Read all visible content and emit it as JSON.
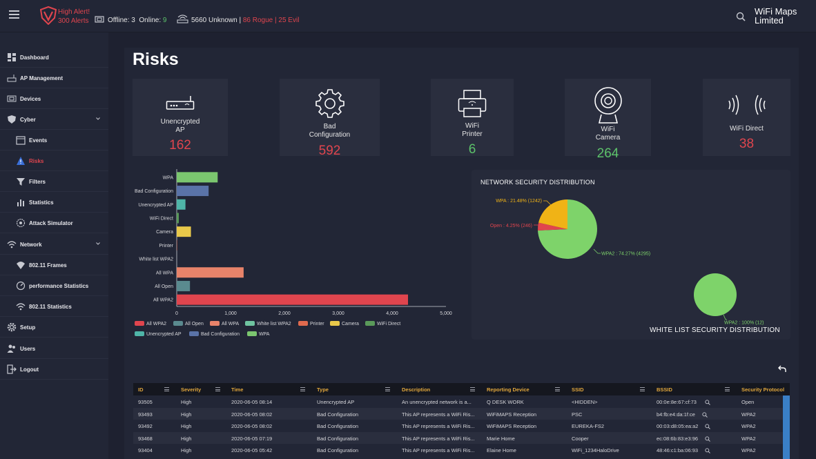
{
  "header": {
    "alert_title": "High Alert!",
    "alert_count": "300 Alerts",
    "offline_label": "Offline:",
    "offline_value": "3",
    "online_label": "Online:",
    "online_value": "9",
    "unknown_text": "5660 Unknown |",
    "rogue_text": "86 Rogue | 25 Evil",
    "brand_line1": "WiFi Maps",
    "brand_line2": "Limited"
  },
  "sidebar": {
    "items": [
      {
        "label": "Dashboard",
        "icon": "dashboard-icon"
      },
      {
        "label": "AP Management",
        "icon": "router-icon"
      },
      {
        "label": "Devices",
        "icon": "devices-icon"
      },
      {
        "label": "Cyber",
        "icon": "shield-icon"
      },
      {
        "label": "Events",
        "icon": "calendar-icon"
      },
      {
        "label": "Risks",
        "icon": "warning-icon"
      },
      {
        "label": "Filters",
        "icon": "filter-icon"
      },
      {
        "label": "Statistics",
        "icon": "bar-chart-icon"
      },
      {
        "label": "Attack Simulator",
        "icon": "target-icon"
      },
      {
        "label": "Network",
        "icon": "wifi-icon"
      },
      {
        "label": "802.11 Frames",
        "icon": "wifi-frames-icon"
      },
      {
        "label": "performance Statistics",
        "icon": "gauge-icon"
      },
      {
        "label": "802.11 Statistics",
        "icon": "wifi-stats-icon"
      },
      {
        "label": "Setup",
        "icon": "gear-icon"
      },
      {
        "label": "Users",
        "icon": "users-icon"
      },
      {
        "label": "Logout",
        "icon": "logout-icon"
      }
    ]
  },
  "page": {
    "title": "Risks"
  },
  "cards": [
    {
      "label1": "Unencrypted",
      "label2": "AP",
      "value": "162",
      "color": "#e0454e"
    },
    {
      "label1": "Bad",
      "label2": "Configuration",
      "value": "592",
      "color": "#e0454e"
    },
    {
      "label1": "WiFi",
      "label2": "Printer",
      "value": "6",
      "color": "#5cc26a"
    },
    {
      "label1": "WiFi",
      "label2": "Camera",
      "value": "264",
      "color": "#5cc26a"
    },
    {
      "label1": "WiFi Direct",
      "label2": "",
      "value": "38",
      "color": "#e0454e"
    }
  ],
  "chart_data": [
    {
      "type": "bar",
      "orientation": "horizontal",
      "categories": [
        "WPA",
        "Bad Configuration",
        "Unencrypted AP",
        "WiFi Direct",
        "Camera",
        "Printer",
        "White list WPA2",
        "All WPA",
        "All Open",
        "All WPA2"
      ],
      "values": [
        760,
        592,
        162,
        38,
        264,
        6,
        0,
        1242,
        246,
        4295
      ],
      "colors": [
        "#7bc66f",
        "#5a73a8",
        "#4fb5a8",
        "#5a9a5a",
        "#e8c84a",
        "#e06a4e",
        "#6fc4a0",
        "#e8836a",
        "#5a8a8f",
        "#e0454e"
      ],
      "xlim": [
        0,
        5000
      ],
      "xticks": [
        "0",
        "1,000",
        "2,000",
        "3,000",
        "4,000",
        "5,000"
      ],
      "legend": [
        {
          "name": "All WPA2",
          "color": "#e0454e"
        },
        {
          "name": "All Open",
          "color": "#5a8a8f"
        },
        {
          "name": "All WPA",
          "color": "#e8836a"
        },
        {
          "name": "White list WPA2",
          "color": "#6fc4a0"
        },
        {
          "name": "Printer",
          "color": "#e06a4e"
        },
        {
          "name": "Camera",
          "color": "#e8c84a"
        },
        {
          "name": "WiFi Direct",
          "color": "#5a9a5a"
        },
        {
          "name": "Unencrypted AP",
          "color": "#4fb5a8"
        },
        {
          "name": "Bad Configuration",
          "color": "#5a73a8"
        },
        {
          "name": "WPA",
          "color": "#7bc66f"
        }
      ]
    },
    {
      "type": "pie",
      "title": "NETWORK SECURITY DISTRIBUTION",
      "slices": [
        {
          "label": "WPA2 : 74.27% (4295)",
          "value": 4295,
          "color": "#7ed36a"
        },
        {
          "label": "Open : 4.25% (246)",
          "value": 246,
          "color": "#e0454e"
        },
        {
          "label": "WPA : 21.48% (1242)",
          "value": 1242,
          "color": "#f0b316"
        }
      ]
    },
    {
      "type": "pie",
      "title": "WHITE LIST SECURITY DISTRIBUTION",
      "slices": [
        {
          "label": "WPA2 : 100% (12)",
          "value": 12,
          "color": "#7ed36a"
        }
      ]
    }
  ],
  "table": {
    "columns": [
      "ID",
      "Severity",
      "Time",
      "Type",
      "Description",
      "Reporting Device",
      "SSID",
      "BSSID",
      "Security Protocol"
    ],
    "rows": [
      [
        "93505",
        "High",
        "2020-06-05 08:14",
        "Unencrypted AP",
        "An unencrypted network is a...",
        "Q DESK WORK",
        "<HIDDEN>",
        "00:0e:8e:67:cf:73",
        "Open"
      ],
      [
        "93493",
        "High",
        "2020-06-05 08:02",
        "Bad Configuration",
        "This AP represents a WiFi Ris...",
        "WiFiMAPS Reception",
        "PSC",
        "b4:fb:e4:da:1f:ce",
        "WPA2"
      ],
      [
        "93492",
        "High",
        "2020-06-05 08:02",
        "Bad Configuration",
        "This AP represents a WiFi Ris...",
        "WiFiMAPS Reception",
        "EUREKA-FS2",
        "00:03:d8:05:ea:a2",
        "WPA2"
      ],
      [
        "93468",
        "High",
        "2020-06-05 07:19",
        "Bad Configuration",
        "This AP represents a WiFi Ris...",
        "Marie Home",
        "Cooper",
        "ec:08:6b:83:e3:96",
        "WPA2"
      ],
      [
        "93404",
        "High",
        "2020-06-05 05:42",
        "Bad Configuration",
        "This AP represents a WiFi Ris...",
        "Elaine Home",
        "WiFi_1234HaloDrive",
        "48:46:c1:ba:06:93",
        "WPA2"
      ]
    ]
  }
}
